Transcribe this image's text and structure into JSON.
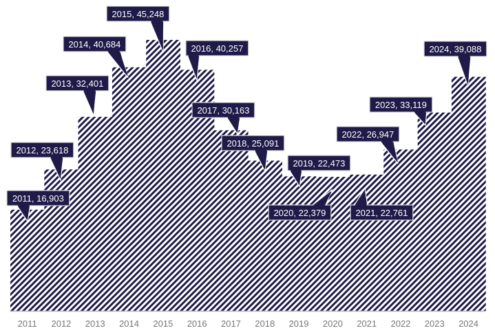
{
  "chart_data": {
    "type": "area",
    "step": true,
    "fill_pattern": "diagonal-hatch",
    "colors": {
      "fill": "#1f1a48",
      "label_bg": "#1f1a48",
      "label_text": "#ffffff",
      "axis": "#bbbbbb",
      "tick_text": "#777777"
    },
    "categories": [
      "2011",
      "2012",
      "2013",
      "2014",
      "2015",
      "2016",
      "2017",
      "2018",
      "2019",
      "2020",
      "2021",
      "2022",
      "2023",
      "2024"
    ],
    "values": [
      16903,
      23618,
      32401,
      40684,
      45248,
      40257,
      30163,
      25091,
      22473,
      22379,
      22761,
      26947,
      33119,
      39088
    ],
    "data_labels": [
      "2011, 16,903",
      "2012, 23,618",
      "2013, 32,401",
      "2014, 40,684",
      "2015, 45,248",
      "2016, 40,257",
      "2017, 30,163",
      "2018, 25,091",
      "2019, 22,473",
      "2020, 22,379",
      "2021, 22,761",
      "2022, 26,947",
      "2023, 33,119",
      "2024, 39,088"
    ],
    "ylim": [
      0,
      45248
    ],
    "grid": false,
    "legend": "none"
  }
}
